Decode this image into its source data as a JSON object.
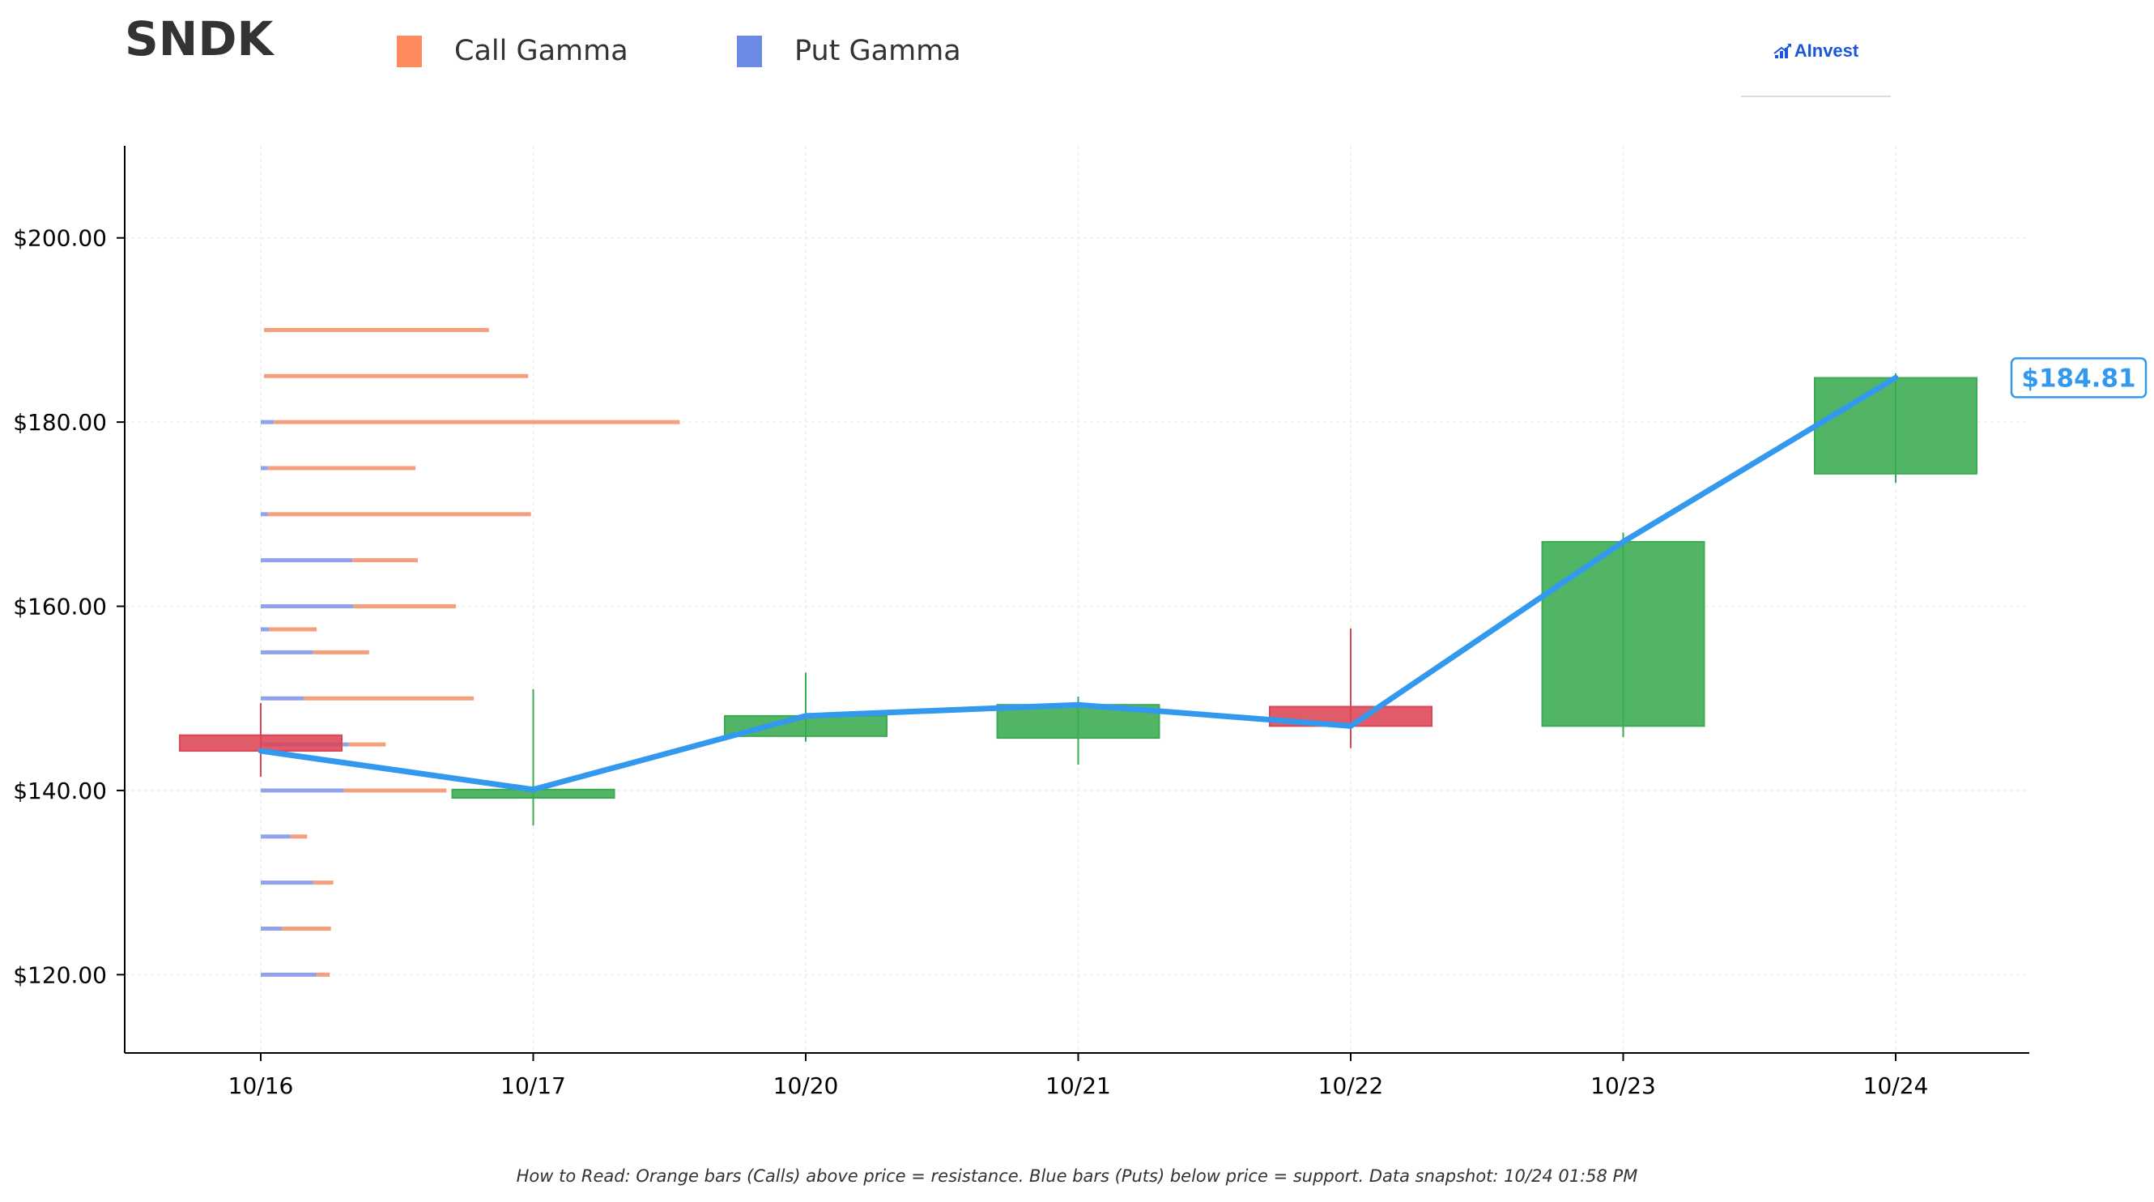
{
  "header": {
    "ticker": "SNDK",
    "legend": [
      {
        "label": "Call Gamma",
        "color": "#ff8a5c"
      },
      {
        "label": "Put Gamma",
        "color": "#6b8ae6"
      }
    ],
    "brand": {
      "name": "AInvest",
      "icon": "chart-arrow-icon"
    }
  },
  "footnote": "How to Read: Orange bars (Calls) above price = resistance. Blue bars (Puts) below price = support. Data snapshot: 10/24 01:58 PM",
  "price_badge": "$184.81",
  "colors": {
    "call": "#f4a07e",
    "put": "#8ea3ea",
    "up": "#3aab50",
    "down": "#dc4655",
    "price_line": "#3399ee",
    "axis": "#000000"
  },
  "chart_data": {
    "type": "candlestick",
    "title": "SNDK",
    "categories": [
      "10/16",
      "10/17",
      "10/20",
      "10/21",
      "10/22",
      "10/23",
      "10/24"
    ],
    "y_ticks": [
      120,
      140,
      160,
      180,
      200
    ],
    "y_tick_labels": [
      "$120.00",
      "$140.00",
      "$160.00",
      "$180.00",
      "$200.00"
    ],
    "ylim": [
      111.5,
      210
    ],
    "grid": true,
    "candles": [
      {
        "date": "10/16",
        "open": 146.0,
        "high": 149.5,
        "low": 141.5,
        "close": 144.3
      },
      {
        "date": "10/17",
        "open": 139.2,
        "high": 151.0,
        "low": 136.2,
        "close": 140.1
      },
      {
        "date": "10/20",
        "open": 145.9,
        "high": 152.8,
        "low": 145.3,
        "close": 148.1
      },
      {
        "date": "10/21",
        "open": 145.7,
        "high": 150.2,
        "low": 142.8,
        "close": 149.3
      },
      {
        "date": "10/22",
        "open": 149.1,
        "high": 157.6,
        "low": 144.6,
        "close": 147.0
      },
      {
        "date": "10/23",
        "open": 147.0,
        "high": 168.0,
        "low": 145.8,
        "close": 167.0
      },
      {
        "date": "10/24",
        "open": 174.4,
        "high": 185.3,
        "low": 173.4,
        "close": 184.8
      }
    ],
    "price_line": [
      144.3,
      140.1,
      148.1,
      149.3,
      147.0,
      167.0,
      184.81
    ],
    "gamma_levels": [
      {
        "strike": 120,
        "put": 0.47,
        "call": 0.11
      },
      {
        "strike": 125,
        "put": 0.18,
        "call": 0.41
      },
      {
        "strike": 130,
        "put": 0.44,
        "call": 0.17
      },
      {
        "strike": 135,
        "put": 0.25,
        "call": 0.14
      },
      {
        "strike": 140,
        "put": 0.7,
        "call": 0.86
      },
      {
        "strike": 145,
        "put": 0.74,
        "call": 0.31
      },
      {
        "strike": 150,
        "put": 0.36,
        "call": 1.43
      },
      {
        "strike": 155,
        "put": 0.44,
        "call": 0.47
      },
      {
        "strike": 157.5,
        "put": 0.07,
        "call": 0.4
      },
      {
        "strike": 160,
        "put": 0.78,
        "call": 0.86
      },
      {
        "strike": 165,
        "put": 0.77,
        "call": 0.55
      },
      {
        "strike": 170,
        "put": 0.06,
        "call": 2.21
      },
      {
        "strike": 175,
        "put": 0.06,
        "call": 1.24
      },
      {
        "strike": 180,
        "put": 0.11,
        "call": 3.41
      },
      {
        "strike": 185,
        "put": 0.0,
        "call": 2.22
      },
      {
        "strike": 190,
        "put": 0.0,
        "call": 1.89
      }
    ]
  }
}
